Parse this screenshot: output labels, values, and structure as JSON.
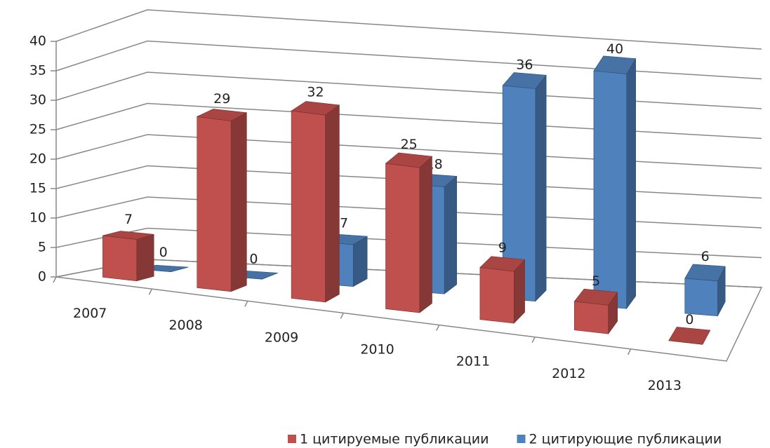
{
  "chart_data": {
    "type": "bar3d",
    "categories": [
      "2007",
      "2008",
      "2009",
      "2010",
      "2011",
      "2012",
      "2013"
    ],
    "series": [
      {
        "name": "1 цитируемые публикации",
        "color": "#c0504d",
        "values": [
          7,
          29,
          32,
          25,
          9,
          5,
          0
        ]
      },
      {
        "name": "2 цитирующие публикации",
        "color": "#4f81bd",
        "values": [
          0,
          0,
          7,
          18,
          36,
          40,
          6
        ]
      }
    ],
    "ylim": [
      0,
      40
    ],
    "yticks": [
      0,
      5,
      10,
      15,
      20,
      25,
      30,
      35,
      40
    ],
    "grid": true,
    "legend": "bottom"
  }
}
